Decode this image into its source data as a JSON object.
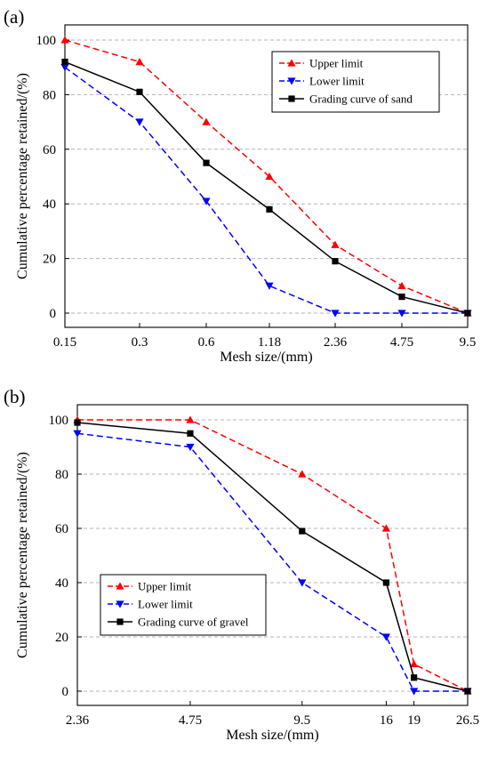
{
  "chart_data": [
    {
      "panel_label": "(a)",
      "type": "line",
      "xlabel": "Mesh size/(mm)",
      "ylabel": "Cumulative percentage retained/(%)",
      "categories": [
        "0.15",
        "0.3",
        "0.6",
        "1.18",
        "2.36",
        "4.75",
        "9.5"
      ],
      "ylim": [
        0,
        100
      ],
      "yticks": [
        0,
        20,
        40,
        60,
        80,
        100
      ],
      "grid": "horizontal dashed",
      "legend_position": "top-right",
      "series": [
        {
          "name": "Upper limit",
          "values": [
            100,
            92,
            70,
            50,
            25,
            10,
            0
          ],
          "color": "#ff0000",
          "line": "dashed",
          "marker": "triangle-up"
        },
        {
          "name": "Lower limit",
          "values": [
            90,
            70,
            41,
            10,
            0,
            0,
            0
          ],
          "color": "#0000ff",
          "line": "dashed",
          "marker": "triangle-down"
        },
        {
          "name": "Grading curve of sand",
          "values": [
            92,
            81,
            55,
            38,
            19,
            6,
            0
          ],
          "color": "#000000",
          "line": "solid",
          "marker": "square"
        }
      ]
    },
    {
      "panel_label": "(b)",
      "type": "line",
      "xlabel": "Mesh size/(mm)",
      "ylabel": "Cumulative percentage retained/(%)",
      "categories": [
        "2.36",
        "4.75",
        "9.5",
        "16",
        "19",
        "26.5"
      ],
      "x": [
        2.36,
        4.75,
        9.5,
        16,
        19,
        26.5
      ],
      "x_scale": "log",
      "ylim": [
        0,
        100
      ],
      "yticks": [
        0,
        20,
        40,
        60,
        80,
        100
      ],
      "grid": "horizontal dashed",
      "legend_position": "bottom-left",
      "series": [
        {
          "name": "Upper limit",
          "values": [
            100,
            100,
            80,
            60,
            10,
            0
          ],
          "color": "#ff0000",
          "line": "dashed",
          "marker": "triangle-up"
        },
        {
          "name": "Lower limit",
          "values": [
            95,
            90,
            40,
            20,
            0,
            0
          ],
          "color": "#0000ff",
          "line": "dashed",
          "marker": "triangle-down"
        },
        {
          "name": "Grading curve of gravel",
          "values": [
            99,
            95,
            59,
            40,
            5,
            0
          ],
          "color": "#000000",
          "line": "solid",
          "marker": "square"
        }
      ]
    }
  ]
}
